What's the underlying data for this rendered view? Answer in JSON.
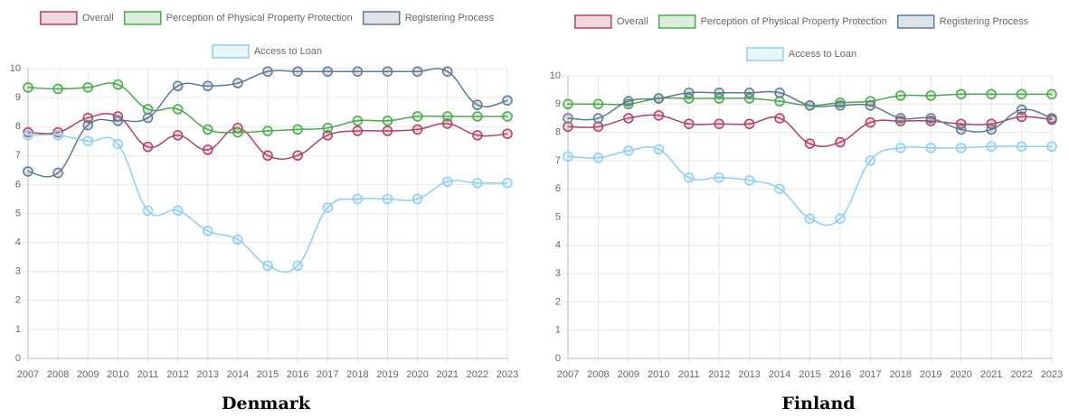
{
  "chart_data": [
    {
      "type": "line",
      "title": "Denmark",
      "categories": [
        "2007",
        "2008",
        "2009",
        "2010",
        "2011",
        "2012",
        "2013",
        "2014",
        "2015",
        "2016",
        "2017",
        "2018",
        "2019",
        "2020",
        "2021",
        "2022",
        "2023"
      ],
      "ylim": [
        0,
        10
      ],
      "yticks": [
        0,
        1,
        2,
        3,
        4,
        5,
        6,
        7,
        8,
        9,
        10
      ],
      "grid": true,
      "series": [
        {
          "name": "Overall",
          "color": "#b04060",
          "values": [
            7.8,
            7.8,
            8.3,
            8.35,
            7.3,
            7.7,
            7.2,
            7.95,
            7.0,
            7.0,
            7.7,
            7.85,
            7.85,
            7.9,
            8.1,
            7.7,
            7.75
          ]
        },
        {
          "name": "Perception of Physical Property Protection",
          "color": "#4aa84a",
          "values": [
            9.35,
            9.3,
            9.35,
            9.45,
            8.6,
            8.6,
            7.9,
            7.8,
            7.85,
            7.9,
            7.95,
            8.2,
            8.2,
            8.35,
            8.35,
            8.35,
            8.35
          ]
        },
        {
          "name": "Registering Process",
          "color": "#5d7a92",
          "values": [
            6.45,
            6.4,
            8.05,
            8.2,
            8.3,
            9.4,
            9.4,
            9.5,
            9.9,
            9.9,
            9.9,
            9.9,
            9.9,
            9.9,
            9.9,
            8.75,
            8.9
          ]
        },
        {
          "name": "Access to Loan",
          "color": "#8ecfee",
          "values": [
            7.7,
            7.7,
            7.5,
            7.4,
            5.1,
            5.1,
            4.4,
            4.1,
            3.2,
            3.2,
            5.2,
            5.5,
            5.5,
            5.5,
            6.1,
            6.05,
            6.05
          ]
        }
      ]
    },
    {
      "type": "line",
      "title": "Finland",
      "categories": [
        "2007",
        "2008",
        "2009",
        "2010",
        "2011",
        "2012",
        "2013",
        "2014",
        "2015",
        "2016",
        "2017",
        "2018",
        "2019",
        "2020",
        "2021",
        "2022",
        "2023"
      ],
      "ylim": [
        0,
        10
      ],
      "yticks": [
        0,
        1,
        2,
        3,
        4,
        5,
        6,
        7,
        8,
        9,
        10
      ],
      "grid": true,
      "series": [
        {
          "name": "Overall",
          "color": "#b04060",
          "values": [
            8.2,
            8.2,
            8.5,
            8.6,
            8.3,
            8.3,
            8.3,
            8.5,
            7.6,
            7.65,
            8.35,
            8.4,
            8.4,
            8.3,
            8.3,
            8.55,
            8.45
          ]
        },
        {
          "name": "Perception of Physical Property Protection",
          "color": "#4aa84a",
          "values": [
            9.0,
            9.0,
            9.0,
            9.2,
            9.2,
            9.2,
            9.2,
            9.1,
            8.95,
            9.05,
            9.1,
            9.3,
            9.3,
            9.35,
            9.35,
            9.35,
            9.35
          ]
        },
        {
          "name": "Registering Process",
          "color": "#5d7a92",
          "values": [
            8.5,
            8.5,
            9.1,
            9.2,
            9.4,
            9.4,
            9.4,
            9.4,
            8.95,
            8.95,
            8.95,
            8.5,
            8.5,
            8.1,
            8.1,
            8.8,
            8.5
          ]
        },
        {
          "name": "Access to Loan",
          "color": "#8ecfee",
          "values": [
            7.15,
            7.1,
            7.35,
            7.4,
            6.4,
            6.4,
            6.3,
            6.0,
            4.95,
            4.95,
            7.0,
            7.45,
            7.45,
            7.45,
            7.5,
            7.5,
            7.5
          ]
        }
      ]
    }
  ]
}
